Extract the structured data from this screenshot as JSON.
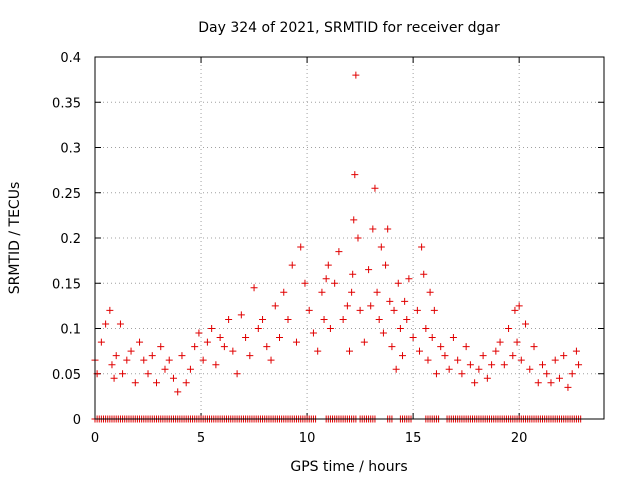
{
  "chart_data": {
    "type": "scatter",
    "title": "Day 324 of 2021, SRMTID for receiver dgar",
    "xlabel": "GPS time / hours",
    "ylabel": "SRMTID / TECUs",
    "xlim": [
      0,
      24
    ],
    "ylim": [
      0,
      0.4
    ],
    "xticks": [
      0,
      5,
      10,
      15,
      20
    ],
    "xtick_labels": [
      "0",
      "5",
      "10",
      "15",
      "20"
    ],
    "yticks": [
      0,
      0.05,
      0.1,
      0.15,
      0.2,
      0.25,
      0.3,
      0.35,
      0.4
    ],
    "ytick_labels": [
      "0",
      "0.05",
      "0.1",
      "0.15",
      "0.2",
      "0.25",
      "0.3",
      "0.35",
      "0.4"
    ],
    "grid": true,
    "marker": "+",
    "series": [
      {
        "name": "SRMTID",
        "color": "#e00000",
        "x": [
          0.0,
          0.1,
          0.3,
          0.5,
          0.7,
          0.8,
          0.9,
          1.0,
          1.2,
          1.3,
          1.5,
          1.7,
          1.9,
          2.1,
          2.3,
          2.5,
          2.7,
          2.9,
          3.1,
          3.3,
          3.5,
          3.7,
          3.9,
          4.1,
          4.3,
          4.5,
          4.7,
          4.9,
          5.1,
          5.3,
          5.5,
          5.7,
          5.9,
          6.1,
          6.3,
          6.5,
          6.7,
          6.9,
          7.1,
          7.3,
          7.5,
          7.7,
          7.9,
          8.1,
          8.3,
          8.5,
          8.7,
          8.9,
          9.1,
          9.3,
          9.5,
          9.7,
          9.9,
          10.1,
          10.3,
          10.5,
          10.7,
          10.8,
          10.9,
          11.0,
          11.1,
          11.3,
          11.5,
          11.7,
          11.9,
          12.0,
          12.1,
          12.15,
          12.2,
          12.25,
          12.3,
          12.4,
          12.5,
          12.7,
          12.9,
          13.0,
          13.1,
          13.2,
          13.3,
          13.4,
          13.5,
          13.6,
          13.7,
          13.8,
          13.9,
          14.0,
          14.1,
          14.2,
          14.3,
          14.4,
          14.5,
          14.6,
          14.7,
          14.8,
          15.0,
          15.2,
          15.3,
          15.4,
          15.5,
          15.6,
          15.7,
          15.8,
          15.9,
          16.0,
          16.1,
          16.3,
          16.5,
          16.7,
          16.9,
          17.1,
          17.3,
          17.5,
          17.7,
          17.9,
          18.1,
          18.3,
          18.5,
          18.7,
          18.9,
          19.1,
          19.3,
          19.5,
          19.7,
          19.8,
          19.9,
          20.0,
          20.1,
          20.3,
          20.5,
          20.7,
          20.9,
          21.1,
          21.3,
          21.5,
          21.7,
          21.9,
          22.1,
          22.3,
          22.5,
          22.7,
          22.8
        ],
        "y": [
          0.065,
          0.05,
          0.085,
          0.105,
          0.12,
          0.06,
          0.045,
          0.07,
          0.105,
          0.05,
          0.065,
          0.075,
          0.04,
          0.085,
          0.065,
          0.05,
          0.07,
          0.04,
          0.08,
          0.055,
          0.065,
          0.045,
          0.03,
          0.07,
          0.04,
          0.055,
          0.08,
          0.095,
          0.065,
          0.085,
          0.1,
          0.06,
          0.09,
          0.08,
          0.11,
          0.075,
          0.05,
          0.115,
          0.09,
          0.07,
          0.145,
          0.1,
          0.11,
          0.08,
          0.065,
          0.125,
          0.09,
          0.14,
          0.11,
          0.17,
          0.085,
          0.19,
          0.15,
          0.12,
          0.095,
          0.075,
          0.14,
          0.11,
          0.155,
          0.17,
          0.1,
          0.15,
          0.185,
          0.11,
          0.125,
          0.075,
          0.14,
          0.16,
          0.22,
          0.27,
          0.38,
          0.2,
          0.12,
          0.085,
          0.165,
          0.125,
          0.21,
          0.255,
          0.14,
          0.11,
          0.19,
          0.095,
          0.17,
          0.21,
          0.13,
          0.08,
          0.12,
          0.055,
          0.15,
          0.1,
          0.07,
          0.13,
          0.11,
          0.155,
          0.09,
          0.12,
          0.075,
          0.19,
          0.16,
          0.1,
          0.065,
          0.14,
          0.09,
          0.12,
          0.05,
          0.08,
          0.07,
          0.055,
          0.09,
          0.065,
          0.05,
          0.08,
          0.06,
          0.04,
          0.055,
          0.07,
          0.045,
          0.06,
          0.075,
          0.085,
          0.06,
          0.1,
          0.07,
          0.12,
          0.085,
          0.125,
          0.065,
          0.105,
          0.055,
          0.08,
          0.04,
          0.06,
          0.05,
          0.04,
          0.065,
          0.045,
          0.07,
          0.035,
          0.05,
          0.075,
          0.06
        ],
        "zero_line_x_ranges": [
          [
            0.0,
            10.4
          ],
          [
            10.9,
            11.5
          ],
          [
            11.6,
            12.3
          ],
          [
            12.5,
            13.2
          ],
          [
            13.8,
            14.0
          ],
          [
            14.4,
            14.9
          ],
          [
            15.6,
            16.2
          ],
          [
            16.6,
            22.9
          ]
        ]
      }
    ]
  }
}
